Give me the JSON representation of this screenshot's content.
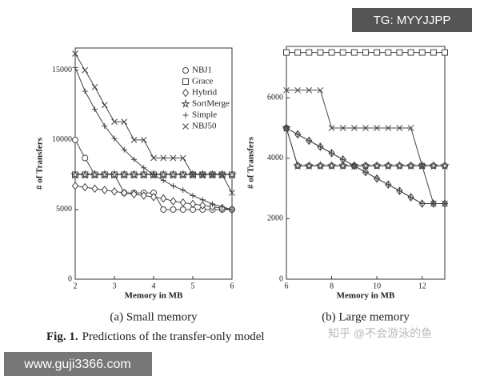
{
  "chart_data": [
    {
      "type": "line",
      "caption": "(a) Small memory",
      "xlabel": "Memory in MB",
      "ylabel": "# of Transfers",
      "x": [
        2,
        2.25,
        2.5,
        2.75,
        3,
        3.25,
        3.5,
        3.75,
        4,
        4.25,
        4.5,
        4.75,
        5,
        5.25,
        5.5,
        5.75,
        6
      ],
      "xlim": [
        2,
        6
      ],
      "xticks": [
        2,
        3,
        4,
        5,
        6
      ],
      "ylim": [
        0,
        16600
      ],
      "yticks": [
        0,
        5000,
        10000,
        15000
      ],
      "legend": "upper right",
      "series": [
        {
          "name": "NBJ1",
          "marker": "circle",
          "color": "#444444",
          "values": [
            10000,
            8700,
            7500,
            7500,
            7500,
            6200,
            6200,
            6200,
            6200,
            5000,
            5000,
            5000,
            5000,
            5000,
            5000,
            5000,
            5000
          ]
        },
        {
          "name": "Grace",
          "marker": "square",
          "color": "#444444",
          "values": [
            7500,
            7500,
            7500,
            7500,
            7500,
            7500,
            7500,
            7500,
            7500,
            7500,
            7500,
            7500,
            7500,
            7500,
            7500,
            7500,
            7500
          ]
        },
        {
          "name": "Hybrid",
          "marker": "diamond",
          "color": "#444444",
          "values": [
            6700,
            6600,
            6500,
            6400,
            6300,
            6200,
            6100,
            6000,
            5900,
            5800,
            5600,
            5500,
            5400,
            5300,
            5200,
            5100,
            5000
          ]
        },
        {
          "name": "SortMerge",
          "marker": "star",
          "color": "#444444",
          "values": [
            7500,
            7500,
            7500,
            7500,
            7500,
            7500,
            7500,
            7500,
            7500,
            7500,
            7500,
            7500,
            7500,
            7500,
            7500,
            7500,
            7500
          ]
        },
        {
          "name": "Simple",
          "marker": "plus",
          "color": "#444444",
          "values": [
            15200,
            13500,
            12200,
            11000,
            10100,
            9300,
            8600,
            8000,
            7500,
            7100,
            6700,
            6400,
            6000,
            5700,
            5400,
            5200,
            5000
          ]
        },
        {
          "name": "NBJ50",
          "marker": "x",
          "color": "#444444",
          "values": [
            16200,
            15000,
            13800,
            12500,
            11300,
            11300,
            10000,
            10000,
            8700,
            8700,
            8700,
            8700,
            7500,
            7500,
            7500,
            7500,
            6200
          ]
        }
      ]
    },
    {
      "type": "line",
      "caption": "(b) Large memory",
      "xlabel": "Memory in MB",
      "ylabel": "# of Transfers",
      "x": [
        6,
        6.5,
        7,
        7.5,
        8,
        8.5,
        9,
        9.5,
        10,
        10.5,
        11,
        11.5,
        12,
        12.5,
        13
      ],
      "xlim": [
        6,
        13
      ],
      "xticks": [
        6,
        8,
        10,
        12
      ],
      "ylim": [
        0,
        7700
      ],
      "yticks": [
        0,
        2000,
        4000,
        6000
      ],
      "series": [
        {
          "name": "NBJ1",
          "marker": "circle",
          "color": "#444444",
          "values": [
            5000,
            3750,
            3750,
            3750,
            3750,
            3750,
            3750,
            3750,
            3750,
            3750,
            3750,
            3750,
            3750,
            3750,
            3750
          ]
        },
        {
          "name": "Grace",
          "marker": "square",
          "color": "#444444",
          "values": [
            7500,
            7500,
            7500,
            7500,
            7500,
            7500,
            7500,
            7500,
            7500,
            7500,
            7500,
            7500,
            7500,
            7500,
            7500
          ]
        },
        {
          "name": "Hybrid",
          "marker": "diamond",
          "color": "#444444",
          "values": [
            5000,
            4790,
            4580,
            4380,
            4170,
            3960,
            3750,
            3540,
            3330,
            3130,
            2920,
            2710,
            2500,
            2500,
            2500
          ]
        },
        {
          "name": "SortMerge",
          "marker": "star",
          "color": "#444444",
          "values": [
            5000,
            3750,
            3750,
            3750,
            3750,
            3750,
            3750,
            3750,
            3750,
            3750,
            3750,
            3750,
            3750,
            3750,
            3750
          ]
        },
        {
          "name": "Simple",
          "marker": "plus",
          "color": "#444444",
          "values": [
            5000,
            4790,
            4580,
            4380,
            4170,
            3960,
            3750,
            3540,
            3330,
            3130,
            2920,
            2710,
            2500,
            2500,
            2500
          ]
        },
        {
          "name": "NBJ50",
          "marker": "x",
          "color": "#444444",
          "values": [
            6250,
            6250,
            6250,
            6250,
            5000,
            5000,
            5000,
            5000,
            5000,
            5000,
            5000,
            5000,
            3750,
            2500,
            2500
          ]
        }
      ]
    }
  ],
  "figure_label": "Fig. 1.",
  "figure_text": "Predictions of the transfer-only model",
  "watermarks": [
    "TG: MYYJJPP",
    "www.guji3366.com",
    "知乎 @不会游泳的鱼"
  ]
}
